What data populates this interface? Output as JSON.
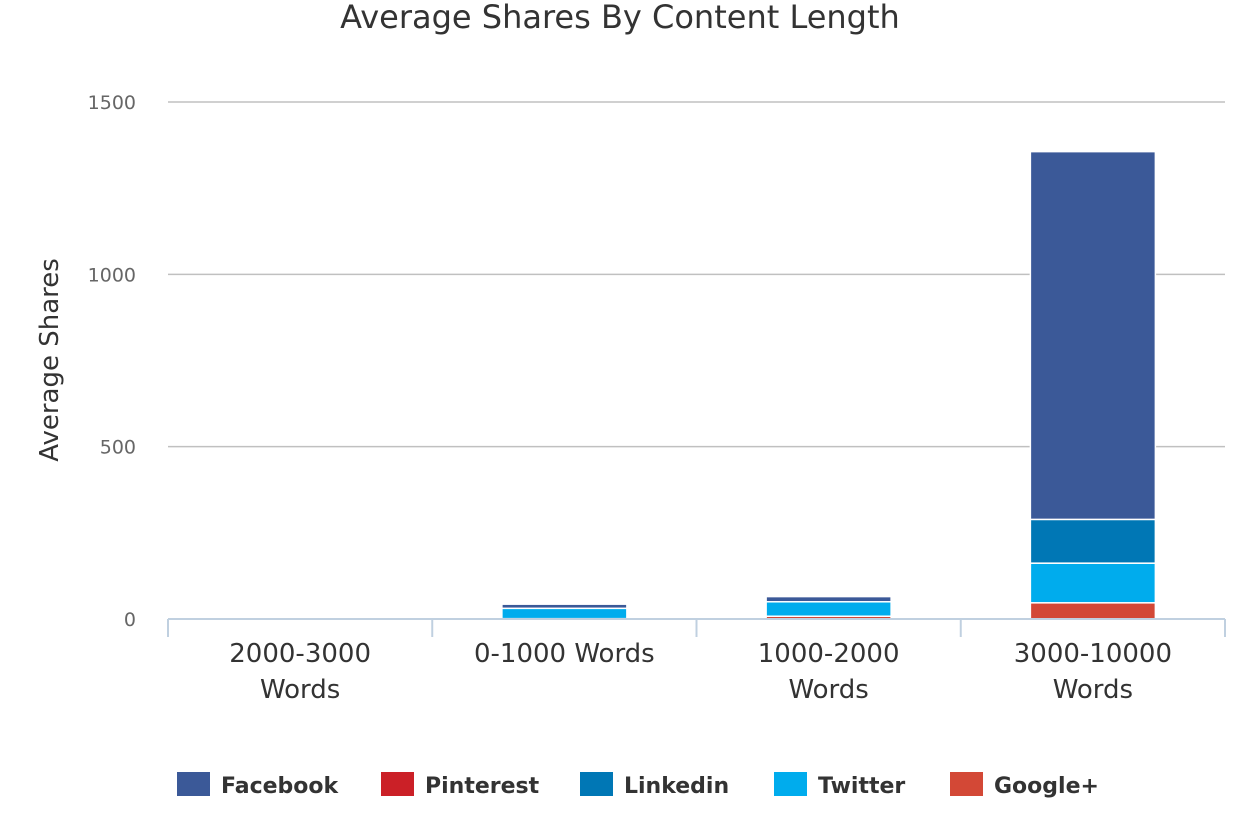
{
  "chart_data": {
    "type": "bar",
    "stacked": true,
    "title": "Average Shares By Content Length",
    "xlabel": "",
    "ylabel": "Average Shares",
    "ylim": [
      0,
      1500
    ],
    "yticks": [
      0,
      500,
      1000,
      1500
    ],
    "grid": true,
    "legend_position": "bottom",
    "categories": [
      [
        "2000-3000",
        "Words"
      ],
      [
        "0-1000 Words"
      ],
      [
        "1000-2000",
        "Words"
      ],
      [
        "3000-10000",
        "Words"
      ]
    ],
    "series": [
      {
        "name": "Facebook",
        "color": "#3b5998",
        "values": [
          0,
          12,
          15,
          1067
        ]
      },
      {
        "name": "Pinterest",
        "color": "#cb2027",
        "values": [
          0,
          0,
          0,
          0
        ]
      },
      {
        "name": "Linkedin",
        "color": "#0077b5",
        "values": [
          0,
          0,
          0,
          127
        ]
      },
      {
        "name": "Twitter",
        "color": "#00aced",
        "values": [
          0,
          30,
          42,
          115
        ]
      },
      {
        "name": "Google+",
        "color": "#d34836",
        "values": [
          0,
          1,
          8,
          47
        ]
      }
    ]
  }
}
